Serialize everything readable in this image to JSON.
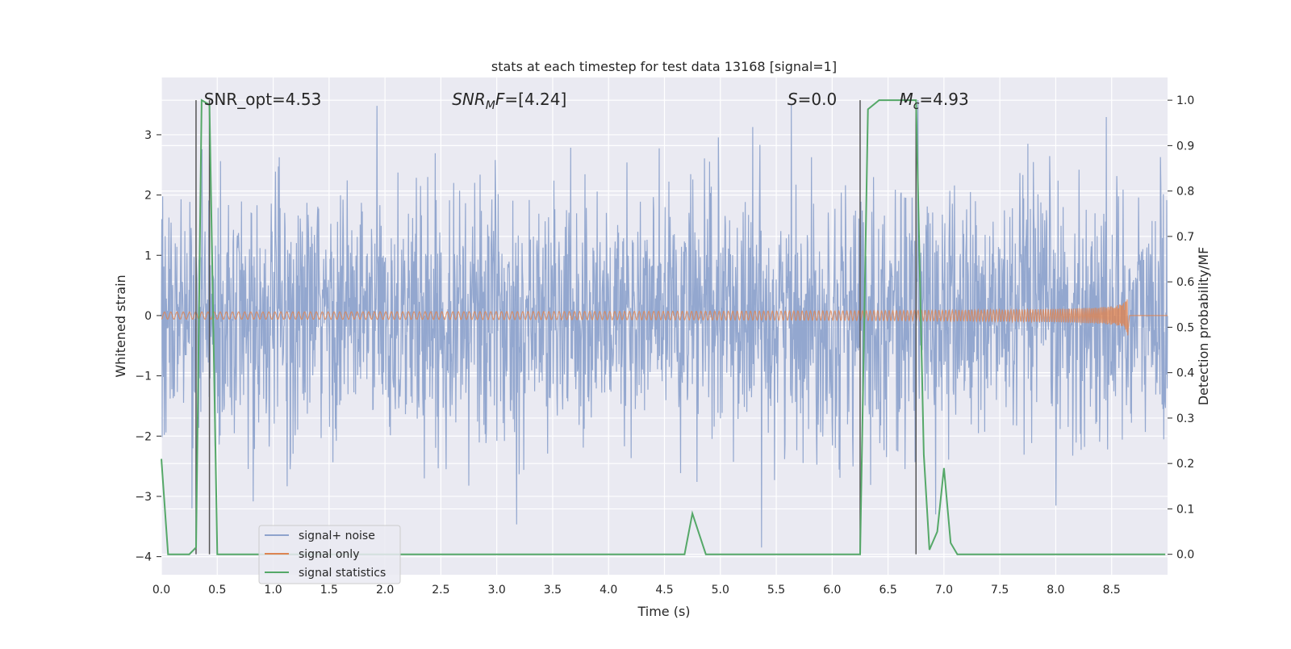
{
  "chart_data": {
    "type": "line",
    "title": "stats at each timestep for test data 13168 [signal=1]",
    "xlabel": "Time (s)",
    "ylabel_left": "Whitened strain",
    "ylabel_right": "Detection probability/MF",
    "xlim": [
      0.0,
      9.0
    ],
    "ylim_left": [
      -4.3,
      3.95
    ],
    "ylim_right": [
      -0.045,
      1.05
    ],
    "grid": true,
    "x_ticks": [
      "0.0",
      "0.5",
      "1.0",
      "1.5",
      "2.0",
      "2.5",
      "3.0",
      "3.5",
      "4.0",
      "4.5",
      "5.0",
      "5.5",
      "6.0",
      "6.5",
      "7.0",
      "7.5",
      "8.0",
      "8.5"
    ],
    "y_ticks_left": [
      "3",
      "2",
      "1",
      "0",
      "−1",
      "−2",
      "−3",
      "−4"
    ],
    "y_ticks_left_values": [
      3,
      2,
      1,
      0,
      -1,
      -2,
      -3,
      -4
    ],
    "y_ticks_right": [
      "1.0",
      "0.9",
      "0.8",
      "0.7",
      "0.6",
      "0.5",
      "0.4",
      "0.3",
      "0.2",
      "0.1",
      "0.0"
    ],
    "y_ticks_right_values": [
      1.0,
      0.9,
      0.8,
      0.7,
      0.6,
      0.5,
      0.4,
      0.3,
      0.2,
      0.1,
      0.0
    ],
    "annotations": [
      {
        "text": "SNR_opt=4.53",
        "x": 0.2,
        "y": 3.6
      },
      {
        "text": "SNR_MF=[4.24]",
        "x": 2.6,
        "y": 3.6
      },
      {
        "text": "S=0.0",
        "x": 5.6,
        "y": 3.6
      },
      {
        "text": "M_c=4.93",
        "x": 6.6,
        "y": 3.6
      }
    ],
    "vertical_lines": [
      0.31,
      0.43,
      6.25,
      6.75
    ],
    "series": [
      {
        "name": "signal+ noise",
        "axis": "left",
        "color": "#8ea3cc",
        "description": "whitened noisy strain, approx gaussian noise with amplitude up to about 3.6",
        "noise_band": [
          -1.3,
          1.3
        ],
        "extremes_max": [
          3.6,
          3.2
        ],
        "extremes_min": [
          -3.8,
          -4.0
        ]
      },
      {
        "name": "signal only",
        "axis": "left",
        "color": "#dd8452",
        "chirp_end_time": 8.65,
        "chirp_peak_amplitude": 0.45
      },
      {
        "name": "signal statistics",
        "axis": "right",
        "color": "#55a868",
        "x": [
          0.0,
          0.06,
          0.25,
          0.31,
          0.36,
          0.43,
          0.5,
          0.56,
          2.0,
          3.6,
          3.65,
          4.68,
          4.75,
          4.87,
          5.0,
          6.25,
          6.32,
          6.42,
          6.75,
          6.82,
          6.87,
          6.94,
          7.0,
          7.06,
          7.12,
          8.98
        ],
        "y": [
          0.21,
          0.0,
          0.0,
          0.015,
          1.0,
          0.99,
          0.0,
          0.0,
          0.0,
          0.0,
          0.0,
          0.0,
          0.09,
          0.0,
          0.0,
          0.0,
          0.98,
          1.0,
          1.0,
          0.22,
          0.01,
          0.05,
          0.19,
          0.025,
          0.0,
          0.0
        ]
      }
    ],
    "legend": {
      "placement": "lower-left",
      "entries": [
        "signal+ noise",
        "signal only",
        "signal statistics"
      ]
    }
  },
  "colors": {
    "plot_background": "#eaeaf2",
    "grid": "#ffffff",
    "vline": "#555555"
  }
}
